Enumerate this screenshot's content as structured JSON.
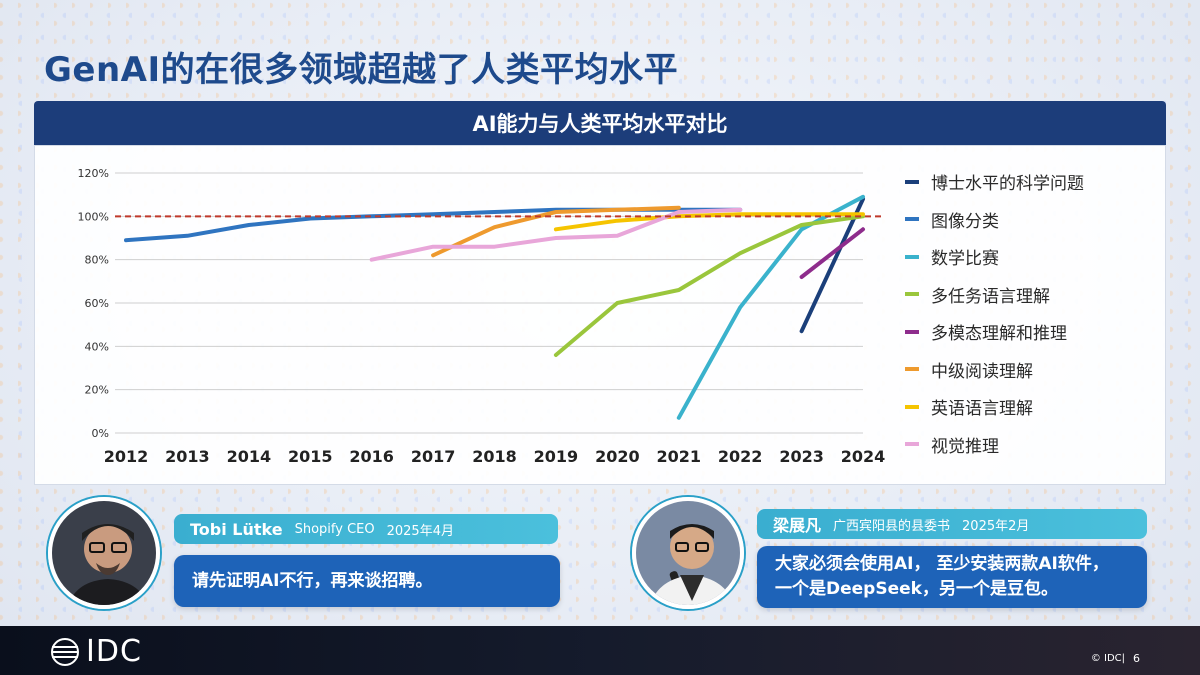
{
  "page_title": "GenAI的在很多领域超越了人类平均水平",
  "chart_title": "AI能力与人类平均水平对比",
  "chart_data": {
    "type": "line",
    "title": "AI能力与人类平均水平对比",
    "x": [
      2012,
      2013,
      2014,
      2015,
      2016,
      2017,
      2018,
      2019,
      2020,
      2021,
      2022,
      2023,
      2024
    ],
    "y_ticks": [
      "0%",
      "20%",
      "40%",
      "60%",
      "80%",
      "100%",
      "120%"
    ],
    "ylim": [
      0,
      120
    ],
    "reference_line": {
      "y": 100,
      "style": "dashed",
      "color": "#c0392b"
    },
    "grid": "horizontal",
    "legend_position": "right",
    "series": [
      {
        "name": "博士水平的科学问题",
        "color": "#1b3f7a",
        "points": [
          [
            2023,
            47
          ],
          [
            2024,
            108
          ]
        ]
      },
      {
        "name": "图像分类",
        "color": "#2f74c0",
        "points": [
          [
            2012,
            89
          ],
          [
            2013,
            91
          ],
          [
            2014,
            96
          ],
          [
            2015,
            99
          ],
          [
            2016,
            100
          ],
          [
            2017,
            101
          ],
          [
            2018,
            102
          ],
          [
            2019,
            103
          ],
          [
            2020,
            103
          ],
          [
            2021,
            103
          ],
          [
            2022,
            103
          ]
        ]
      },
      {
        "name": "数学比赛",
        "color": "#3ab2cc",
        "points": [
          [
            2021,
            7
          ],
          [
            2022,
            58
          ],
          [
            2023,
            94
          ],
          [
            2024,
            109
          ]
        ]
      },
      {
        "name": "多任务语言理解",
        "color": "#9ac63c",
        "points": [
          [
            2019,
            36
          ],
          [
            2020,
            60
          ],
          [
            2021,
            66
          ],
          [
            2022,
            83
          ],
          [
            2023,
            96
          ],
          [
            2024,
            100
          ]
        ]
      },
      {
        "name": "多模态理解和推理",
        "color": "#8e2c8c",
        "points": [
          [
            2023,
            72
          ],
          [
            2024,
            94
          ]
        ]
      },
      {
        "name": "中级阅读理解",
        "color": "#ee9a2e",
        "points": [
          [
            2017,
            82
          ],
          [
            2018,
            95
          ],
          [
            2019,
            102
          ],
          [
            2020,
            103
          ],
          [
            2021,
            104
          ]
        ]
      },
      {
        "name": "英语语言理解",
        "color": "#f5c400",
        "points": [
          [
            2019,
            94
          ],
          [
            2020,
            98
          ],
          [
            2021,
            100
          ],
          [
            2022,
            101
          ],
          [
            2023,
            101
          ],
          [
            2024,
            101
          ]
        ]
      },
      {
        "name": "视觉推理",
        "color": "#e8a6d9",
        "points": [
          [
            2016,
            80
          ],
          [
            2017,
            86
          ],
          [
            2018,
            86
          ],
          [
            2019,
            90
          ],
          [
            2020,
            91
          ],
          [
            2021,
            102
          ],
          [
            2022,
            103
          ]
        ]
      }
    ]
  },
  "quotes": [
    {
      "name": "Tobi Lütke",
      "role": "Shopify CEO",
      "date": "2025年4月",
      "text": "请先证明AI不行，再来谈招聘。"
    },
    {
      "name": "梁展凡",
      "role": "广西宾阳县的县委书",
      "date": "2025年2月",
      "text_line1": "大家必须会使用AI， 至少安装两款AI软件，",
      "text_line2": "一个是DeepSeek，另一个是豆包。"
    }
  ],
  "footer": {
    "logo_text": "IDC",
    "copyright": "© IDC|",
    "page_number": "6"
  },
  "colors": {
    "title_blue": "#1e4a8c",
    "header_navy": "#1c3d7a",
    "bubble_blue": "#1e63b8",
    "speaker_teal": "#3aaed0"
  }
}
